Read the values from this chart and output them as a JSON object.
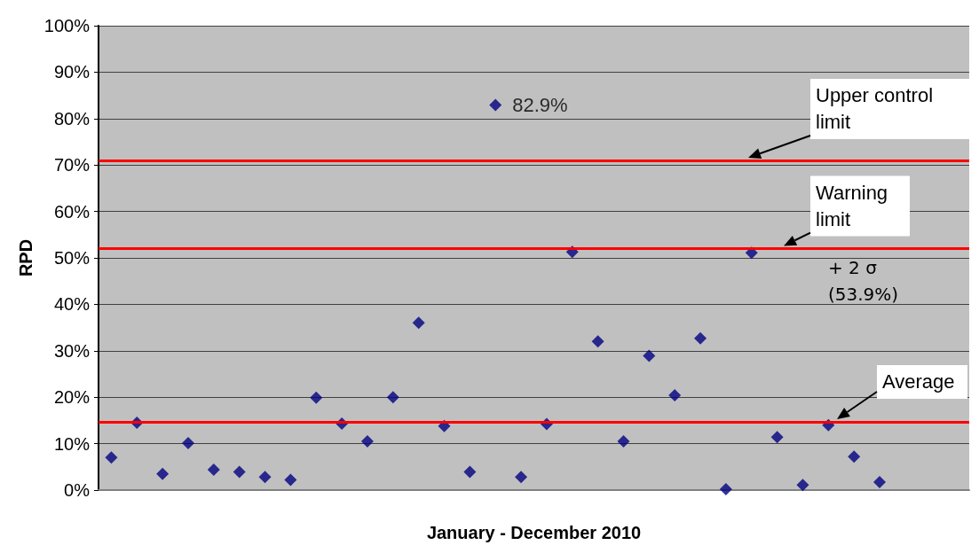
{
  "chart_data": {
    "type": "scatter",
    "xlabel": "January - December 2010",
    "ylabel": "RPD",
    "categories": [
      null,
      null,
      null,
      null,
      null,
      null,
      null,
      null,
      null,
      null,
      null,
      null,
      null,
      null,
      null,
      null,
      null,
      null,
      null,
      null,
      null,
      null,
      null,
      null,
      null,
      null,
      null,
      null,
      null,
      null,
      null,
      null,
      null,
      null
    ],
    "series": [
      {
        "color": "#000080",
        "values": [
          7.0,
          14.5,
          3.5,
          10.1,
          4.4,
          3.9,
          2.8,
          2.2,
          19.9,
          14.3,
          10.5,
          20.0,
          36.0,
          13.8,
          3.9,
          82.9,
          2.8,
          14.2,
          51.3,
          32.0,
          10.5,
          28.9,
          20.4,
          32.7,
          0.2,
          51.1,
          11.4,
          1.1,
          14.0,
          7.2,
          1.7,
          null,
          null,
          null
        ],
        "value_labels": [
          null,
          null,
          null,
          null,
          null,
          null,
          null,
          null,
          null,
          null,
          null,
          null,
          null,
          null,
          null,
          "82.9%",
          null,
          null,
          null,
          null,
          null,
          null,
          null,
          null,
          null,
          null,
          null,
          null,
          null,
          null,
          null,
          null,
          null,
          null
        ]
      }
    ],
    "ylim": [
      0,
      100
    ],
    "yticks": [
      {
        "value": 0,
        "label": "0%"
      },
      {
        "value": 10,
        "label": "10%"
      },
      {
        "value": 20,
        "label": "20%"
      },
      {
        "value": 30,
        "label": "30%"
      },
      {
        "value": 40,
        "label": "40%"
      },
      {
        "value": 50,
        "label": "50%"
      },
      {
        "value": 60,
        "label": "60%"
      },
      {
        "value": 70,
        "label": "70%"
      },
      {
        "value": 80,
        "label": "80%"
      },
      {
        "value": 90,
        "label": "90%"
      },
      {
        "value": 100,
        "label": "100%"
      }
    ],
    "ref_lines": [
      {
        "axis": "y",
        "value": 71.0,
        "label": "Upper control limit",
        "color": "#ff0000"
      },
      {
        "axis": "y",
        "value": 52.0,
        "label": "Warning limit",
        "color": "#ff0000"
      },
      {
        "axis": "y",
        "value": 14.7,
        "label": "Average",
        "color": "#ff0000"
      }
    ],
    "annotations": [
      "+ 2 σ\n(53.9%)"
    ],
    "marker": "diamond",
    "grid": "y"
  }
}
